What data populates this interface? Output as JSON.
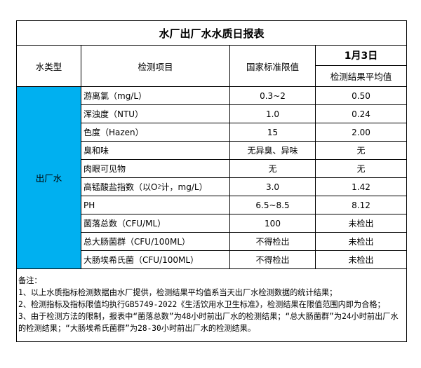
{
  "title": "水厂出厂水水质日报表",
  "headers": {
    "type": "水类型",
    "item": "检测项目",
    "standard": "国家标准限值",
    "date": "1月3日",
    "result": "检测结果平均值"
  },
  "water_type": "出厂水",
  "type_color": "#00b0f0",
  "rows": [
    {
      "item": "游离氯（mg/L）",
      "standard": "0.3~2",
      "result": "0.50"
    },
    {
      "item": "浑浊度（NTU）",
      "standard": "1.0",
      "result": "0.24"
    },
    {
      "item": "色度（Hazen）",
      "standard": "15",
      "result": "2.00"
    },
    {
      "item": "臭和味",
      "standard": "无异臭、异味",
      "result": "无"
    },
    {
      "item": "肉眼可见物",
      "standard": "无",
      "result": "无"
    },
    {
      "item_pre": "高锰酸盐指数（以O",
      "item_sub": "2",
      "item_post": "计，mg/L）",
      "standard": "3.0",
      "result": "1.42"
    },
    {
      "item": "PH",
      "standard": "6.5~8.5",
      "result": "8.12"
    },
    {
      "item": "菌落总数（CFU/ML）",
      "standard": "100",
      "result": "未检出"
    },
    {
      "item": "总大肠菌群（CFU/100ML）",
      "standard": "不得检出",
      "result": "未检出"
    },
    {
      "item": "大肠埃希氏菌（CFU/100ML）",
      "standard": "不得检出",
      "result": "未检出"
    }
  ],
  "notes": [
    "备注：",
    "1、以上水质指标检测数据由水厂提供，检测结果平均值系当天出厂水检测数据的统计结果；",
    "2、检测指标及指标限值均执行GB5749-2022《生活饮用水卫生标准》，检测结果在限值范围内即为合格；",
    "3、由于检测方法的限制，报表中“菌落总数”为48小时前出厂水的检测结果；“总大肠菌群”为24小时前出厂水的检测结果；“大肠埃希氏菌群”为28-30小时前出厂水的检测结果。"
  ]
}
